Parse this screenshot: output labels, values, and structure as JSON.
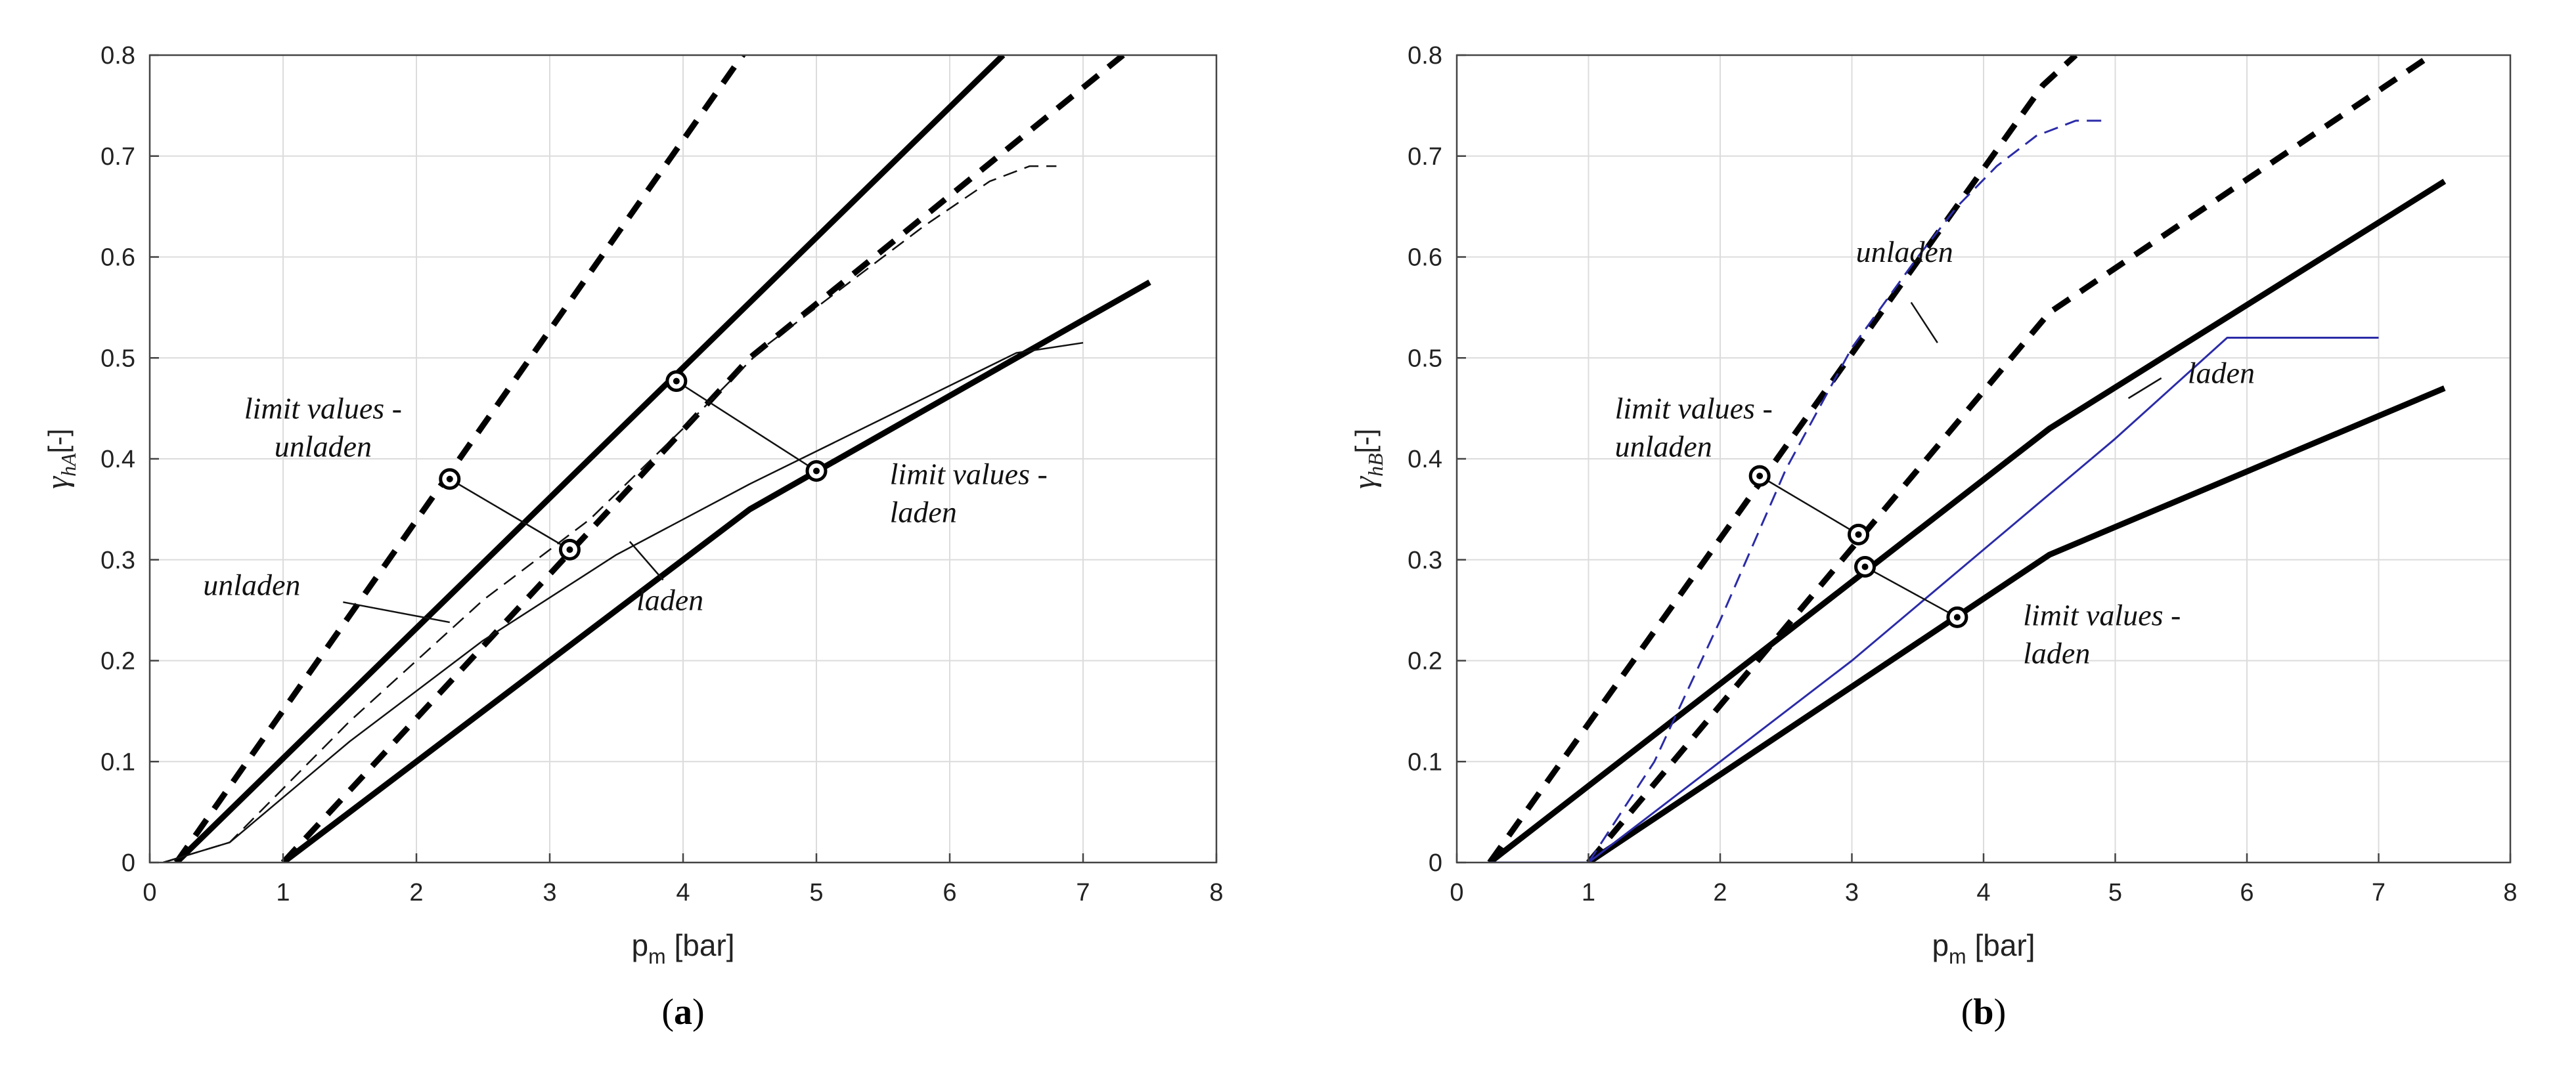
{
  "chart_data": [
    {
      "type": "line",
      "panel_label": "a",
      "xlabel": "p",
      "xlabel_sub": "m",
      "xlabel_unit": " [bar]",
      "ylabel": "γ",
      "ylabel_sub": "hA",
      "ylabel_unit": "[-]",
      "xlim": [
        0,
        8
      ],
      "ylim": [
        0,
        0.8
      ],
      "xticks": [
        "0",
        "1",
        "2",
        "3",
        "4",
        "5",
        "6",
        "7",
        "8"
      ],
      "yticks": [
        "0",
        "0.1",
        "0.2",
        "0.3",
        "0.4",
        "0.5",
        "0.6",
        "0.7",
        "0.8"
      ],
      "grid": true,
      "colors": {
        "limit": "#000000",
        "measured": "#111111"
      },
      "series": [
        {
          "style": "thick-dashed",
          "x": [
            0.2,
            4.5
          ],
          "y": [
            0,
            0.81
          ]
        },
        {
          "style": "thick-solid",
          "x": [
            0.2,
            6.4
          ],
          "y": [
            0,
            0.8
          ]
        },
        {
          "style": "thick-dashed",
          "x": [
            1.0,
            4.5,
            7.3
          ],
          "y": [
            0,
            0.5,
            0.8
          ]
        },
        {
          "style": "thick-solid",
          "x": [
            1.0,
            4.5,
            7.5
          ],
          "y": [
            0,
            0.35,
            0.575
          ]
        },
        {
          "style": "thin-dashed",
          "x": [
            0.1,
            0.6,
            1.5,
            2.5,
            3.3,
            4.0,
            4.6,
            5.2,
            5.8,
            6.3,
            6.6,
            6.8
          ],
          "y": [
            0,
            0.02,
            0.14,
            0.26,
            0.34,
            0.43,
            0.51,
            0.57,
            0.63,
            0.675,
            0.69,
            0.69
          ]
        },
        {
          "style": "thin-solid",
          "x": [
            0.1,
            0.6,
            1.5,
            2.5,
            3.5,
            4.5,
            5.5,
            6.5,
            7.0
          ],
          "y": [
            0,
            0.02,
            0.12,
            0.22,
            0.305,
            0.375,
            0.44,
            0.505,
            0.515
          ]
        }
      ],
      "markers": [
        {
          "x": 2.25,
          "y": 0.38
        },
        {
          "x": 3.15,
          "y": 0.31
        },
        {
          "x": 3.95,
          "y": 0.477
        },
        {
          "x": 5.0,
          "y": 0.388
        }
      ],
      "leaders": [
        {
          "x1": 2.25,
          "y1": 0.38,
          "x2": 3.15,
          "y2": 0.31
        },
        {
          "x1": 3.95,
          "y1": 0.477,
          "x2": 5.0,
          "y2": 0.388
        },
        {
          "x1": 1.45,
          "y1": 0.258,
          "x2": 2.25,
          "y2": 0.238
        },
        {
          "x1": 3.6,
          "y1": 0.318,
          "x2": 3.85,
          "y2": 0.28
        }
      ],
      "annotations": [
        {
          "lines": [
            "limit values -",
            "unladen"
          ],
          "x": 1.3,
          "y": 0.44,
          "anchor": "middle"
        },
        {
          "lines": [
            "limit values -",
            "laden"
          ],
          "x": 5.55,
          "y": 0.375,
          "anchor": "start"
        },
        {
          "lines": [
            "unladen"
          ],
          "x": 0.4,
          "y": 0.265,
          "anchor": "start"
        },
        {
          "lines": [
            "laden"
          ],
          "x": 3.65,
          "y": 0.25,
          "anchor": "start"
        }
      ]
    },
    {
      "type": "line",
      "panel_label": "b",
      "xlabel": "p",
      "xlabel_sub": "m",
      "xlabel_unit": " [bar]",
      "ylabel": "γ",
      "ylabel_sub": "hB",
      "ylabel_unit": "[-]",
      "xlim": [
        0,
        8
      ],
      "ylim": [
        0,
        0.8
      ],
      "xticks": [
        "0",
        "1",
        "2",
        "3",
        "4",
        "5",
        "6",
        "7",
        "8"
      ],
      "yticks": [
        "0",
        "0.1",
        "0.2",
        "0.3",
        "0.4",
        "0.5",
        "0.6",
        "0.7",
        "0.8"
      ],
      "grid": true,
      "colors": {
        "limit": "#000000",
        "measured": "#2b2ba8"
      },
      "series": [
        {
          "style": "thick-dashed",
          "x": [
            0.25,
            4.45,
            4.7
          ],
          "y": [
            0,
            0.77,
            0.8
          ]
        },
        {
          "style": "thick-dashed",
          "x": [
            1.0,
            4.5,
            7.4
          ],
          "y": [
            0,
            0.545,
            0.8
          ]
        },
        {
          "style": "thick-solid",
          "x": [
            0.25,
            4.5,
            7.5
          ],
          "y": [
            0,
            0.43,
            0.675
          ]
        },
        {
          "style": "thick-solid",
          "x": [
            1.0,
            4.5,
            7.5
          ],
          "y": [
            0,
            0.305,
            0.47
          ]
        },
        {
          "style": "thin-dashed-blue",
          "x": [
            1.0,
            1.5,
            2.0,
            2.5,
            3.0,
            3.5,
            3.8,
            4.1,
            4.4,
            4.7,
            4.9
          ],
          "y": [
            0,
            0.1,
            0.24,
            0.39,
            0.51,
            0.6,
            0.65,
            0.69,
            0.72,
            0.735,
            0.735
          ]
        },
        {
          "style": "thin-solid-blue",
          "x": [
            0.25,
            1.0,
            2.0,
            3.0,
            4.0,
            5.0,
            5.85,
            6.4,
            7.0
          ],
          "y": [
            0,
            0,
            0.1,
            0.2,
            0.31,
            0.42,
            0.52,
            0.52,
            0.52
          ]
        }
      ],
      "markers": [
        {
          "x": 2.3,
          "y": 0.383
        },
        {
          "x": 3.05,
          "y": 0.325
        },
        {
          "x": 3.1,
          "y": 0.293
        },
        {
          "x": 3.8,
          "y": 0.243
        }
      ],
      "leaders": [
        {
          "x1": 2.3,
          "y1": 0.383,
          "x2": 3.05,
          "y2": 0.325
        },
        {
          "x1": 3.1,
          "y1": 0.293,
          "x2": 3.8,
          "y2": 0.243
        },
        {
          "x1": 3.45,
          "y1": 0.555,
          "x2": 3.65,
          "y2": 0.515
        },
        {
          "x1": 5.35,
          "y1": 0.48,
          "x2": 5.1,
          "y2": 0.46
        }
      ],
      "annotations": [
        {
          "lines": [
            "limit values -",
            "unladen"
          ],
          "x": 1.2,
          "y": 0.44,
          "anchor": "start"
        },
        {
          "lines": [
            "limit values -",
            "laden"
          ],
          "x": 4.3,
          "y": 0.235,
          "anchor": "start"
        },
        {
          "lines": [
            "unladen"
          ],
          "x": 3.4,
          "y": 0.595,
          "anchor": "middle"
        },
        {
          "lines": [
            "laden"
          ],
          "x": 5.55,
          "y": 0.475,
          "anchor": "start"
        }
      ]
    }
  ]
}
